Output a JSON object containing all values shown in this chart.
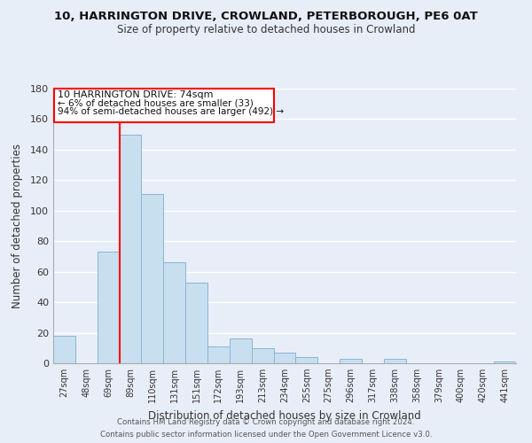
{
  "title": "10, HARRINGTON DRIVE, CROWLAND, PETERBOROUGH, PE6 0AT",
  "subtitle": "Size of property relative to detached houses in Crowland",
  "xlabel": "Distribution of detached houses by size in Crowland",
  "ylabel": "Number of detached properties",
  "bar_color": "#c8dff0",
  "bar_edge_color": "#8ab4d4",
  "background_color": "#e8eef8",
  "grid_color": "#ffffff",
  "categories": [
    "27sqm",
    "48sqm",
    "69sqm",
    "89sqm",
    "110sqm",
    "131sqm",
    "151sqm",
    "172sqm",
    "193sqm",
    "213sqm",
    "234sqm",
    "255sqm",
    "275sqm",
    "296sqm",
    "317sqm",
    "338sqm",
    "358sqm",
    "379sqm",
    "400sqm",
    "420sqm",
    "441sqm"
  ],
  "values": [
    18,
    0,
    73,
    150,
    111,
    66,
    53,
    11,
    16,
    10,
    7,
    4,
    0,
    3,
    0,
    3,
    0,
    0,
    0,
    0,
    1
  ],
  "ylim": [
    0,
    180
  ],
  "yticks": [
    0,
    20,
    40,
    60,
    80,
    100,
    120,
    140,
    160,
    180
  ],
  "annotation_title": "10 HARRINGTON DRIVE: 74sqm",
  "annotation_line1": "← 6% of detached houses are smaller (33)",
  "annotation_line2": "94% of semi-detached houses are larger (492) →",
  "footer_line1": "Contains HM Land Registry data © Crown copyright and database right 2024.",
  "footer_line2": "Contains public sector information licensed under the Open Government Licence v3.0.",
  "red_line_sqm": 74
}
